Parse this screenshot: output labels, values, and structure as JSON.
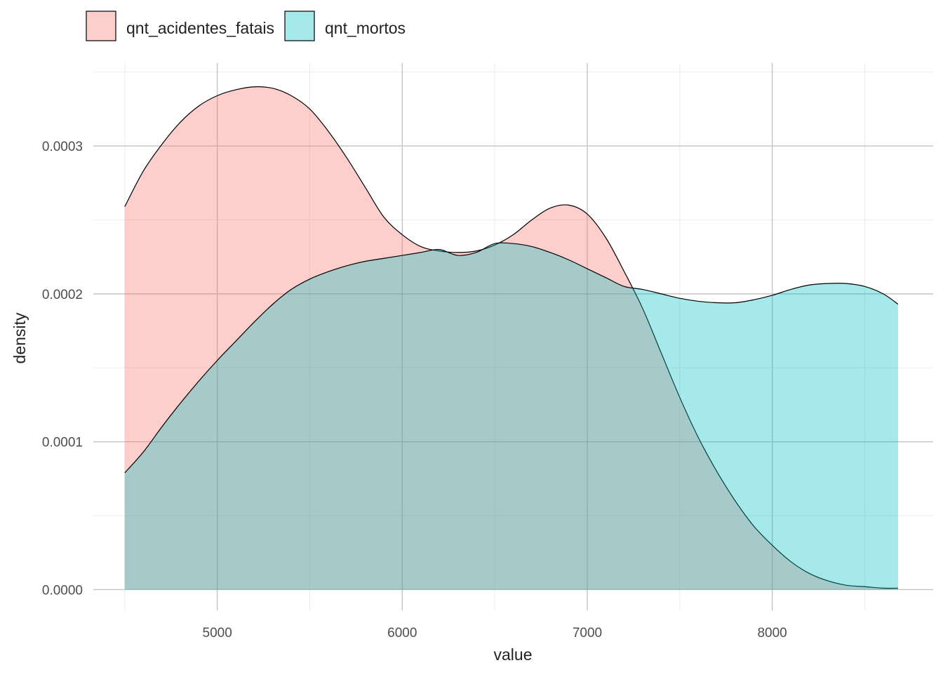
{
  "chart_data": {
    "type": "area",
    "subtype": "density",
    "xlabel": "value",
    "ylabel": "density",
    "xlim": [
      4330,
      8870
    ],
    "ylim": [
      -1.4e-05,
      0.000356
    ],
    "x_ticks": [
      5000,
      6000,
      7000,
      8000
    ],
    "x_tick_labels": [
      "5000",
      "6000",
      "7000",
      "8000"
    ],
    "y_ticks": [
      0.0,
      0.0001,
      0.0002,
      0.0003
    ],
    "y_tick_labels": [
      "0.0000",
      "0.0001",
      "0.0002",
      "0.0003"
    ],
    "grid": true,
    "legend_position": "top-left",
    "series": [
      {
        "name": "qnt_acidentes_fatais",
        "color": "#F8766D",
        "x": [
          4500,
          4600,
          4700,
          4800,
          4900,
          5000,
          5100,
          5200,
          5300,
          5400,
          5500,
          5600,
          5700,
          5800,
          5900,
          6000,
          6100,
          6200,
          6300,
          6400,
          6500,
          6600,
          6700,
          6800,
          6900,
          7000,
          7100,
          7200,
          7300,
          7400,
          7500,
          7600,
          7700,
          7800,
          7900,
          8000,
          8100,
          8200,
          8300,
          8400,
          8500,
          8600,
          8680
        ],
        "y": [
          0.000259,
          0.000283,
          0.000301,
          0.000316,
          0.000327,
          0.000334,
          0.000338,
          0.00034,
          0.000339,
          0.000334,
          0.000325,
          0.00031,
          0.000292,
          0.000272,
          0.000252,
          0.00024,
          0.000232,
          0.000229,
          0.000228,
          0.000229,
          0.000233,
          0.00024,
          0.00025,
          0.000258,
          0.00026,
          0.000254,
          0.000238,
          0.000215,
          0.00019,
          0.00016,
          0.00013,
          0.000103,
          8e-05,
          6e-05,
          4.3e-05,
          3e-05,
          1.9e-05,
          1.1e-05,
          6e-06,
          3e-06,
          2e-06,
          1e-06,
          1e-06
        ]
      },
      {
        "name": "qnt_mortos",
        "color": "#00BFC4",
        "x": [
          4500,
          4600,
          4700,
          4800,
          4900,
          5000,
          5100,
          5200,
          5300,
          5400,
          5500,
          5600,
          5700,
          5800,
          5900,
          6000,
          6100,
          6200,
          6300,
          6400,
          6500,
          6600,
          6700,
          6800,
          6900,
          7000,
          7100,
          7200,
          7300,
          7400,
          7500,
          7600,
          7700,
          7800,
          7900,
          8000,
          8100,
          8200,
          8300,
          8400,
          8500,
          8600,
          8680
        ],
        "y": [
          7.9e-05,
          9.3e-05,
          0.00011,
          0.000126,
          0.000141,
          0.000155,
          0.000168,
          0.000181,
          0.000193,
          0.000203,
          0.00021,
          0.000215,
          0.000219,
          0.000222,
          0.000224,
          0.000226,
          0.000228,
          0.00023,
          0.000226,
          0.000228,
          0.000234,
          0.000234,
          0.000232,
          0.000228,
          0.000223,
          0.000217,
          0.000211,
          0.000205,
          0.000203,
          0.0002,
          0.000197,
          0.000195,
          0.000194,
          0.000194,
          0.000196,
          0.000199,
          0.000203,
          0.000206,
          0.000207,
          0.000207,
          0.000205,
          0.0002,
          0.000193
        ]
      }
    ]
  }
}
